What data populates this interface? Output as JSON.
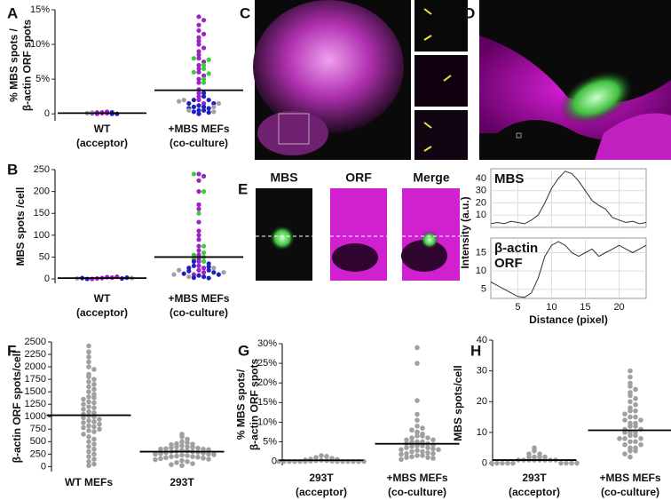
{
  "image_panels": [
    {
      "panel": "C"
    },
    {
      "panel": "D"
    },
    {
      "panel": "E",
      "labels": [
        "MBS",
        "ORF",
        "Merge"
      ]
    }
  ],
  "chart_data": [
    {
      "type": "dot",
      "panel": "A",
      "ylabel": [
        "% MBS spots /",
        "β-actin ORF spots"
      ],
      "categories": [
        "WT",
        "+MBS MEFs"
      ],
      "category_sublabels": [
        "(acceptor)",
        "(co-culture)"
      ],
      "ylim": [
        -1,
        15
      ],
      "yticks": [
        0,
        {
          "value": 5,
          "label": "5%"
        },
        {
          "value": 10,
          "label": "10%"
        },
        {
          "value": 15,
          "label": "15%"
        }
      ],
      "means": [
        0.1,
        3.4
      ],
      "series": [
        {
          "color": "#a020c8",
          "values": [
            [
              0.1,
              0.2,
              0.3,
              0.1,
              0.0,
              0.2
            ],
            [
              14,
              13.5,
              12.8,
              12,
              11.5,
              11,
              10.5,
              10,
              9.5,
              9,
              8.5,
              8,
              7.5,
              7,
              6.5,
              6,
              5.5,
              5,
              4.5,
              3.5,
              3,
              2.5,
              2,
              1.5
            ]
          ]
        },
        {
          "color": "#3ccc3c",
          "values": [
            [],
            [
              8,
              7.8,
              7,
              6.5,
              6,
              5.8,
              5,
              4.5
            ]
          ]
        },
        {
          "color": "#2020c0",
          "values": [
            [
              0.0,
              0.1,
              0.2,
              0.0
            ],
            [
              3,
              2.5,
              2,
              2,
              1.5,
              1.5,
              1.2,
              1,
              1,
              0.8,
              0.8,
              0.5,
              0.5,
              0.3,
              0.2,
              0
            ]
          ]
        },
        {
          "color": "#a0a0a0",
          "values": [
            [
              0.1,
              0.2
            ],
            [
              2,
              1.5,
              1,
              0.5,
              0.3,
              1.8
            ]
          ]
        }
      ]
    },
    {
      "type": "dot",
      "panel": "B",
      "ylabel": [
        "MBS spots /cell"
      ],
      "categories": [
        "WT",
        "+MBS MEFs"
      ],
      "category_sublabels": [
        "(acceptor)",
        "(co-culture)"
      ],
      "ylim": [
        -10,
        250
      ],
      "yticks": [
        0,
        50,
        100,
        150,
        200,
        250
      ],
      "means": [
        2,
        50
      ],
      "series": [
        {
          "color": "#a020c8",
          "values": [
            [
              2,
              4,
              1,
              3,
              0,
              5
            ],
            [
              240,
              235,
              225,
              200,
              170,
              160,
              130,
              110,
              100,
              90,
              75,
              65,
              55,
              45,
              40,
              30,
              25,
              20,
              15,
              10
            ]
          ]
        },
        {
          "color": "#3ccc3c",
          "values": [
            [],
            [
              240,
              200,
              150,
              75,
              60,
              55,
              50,
              45,
              40
            ]
          ]
        },
        {
          "color": "#2020c0",
          "values": [
            [
              0,
              1,
              2,
              3
            ],
            [
              40,
              35,
              30,
              28,
              25,
              20,
              18,
              15,
              12,
              10,
              8,
              5,
              3,
              2
            ]
          ]
        },
        {
          "color": "#a0a0a0",
          "values": [
            [
              1,
              2
            ],
            [
              25,
              20,
              15,
              10,
              5
            ]
          ]
        }
      ]
    },
    {
      "type": "line",
      "title": [
        "MBS"
      ],
      "ylabel": "Intensity (a.u.)",
      "color": "#333333",
      "x": [
        1,
        2,
        3,
        4,
        5,
        6,
        7,
        8,
        9,
        10,
        11,
        12,
        13,
        14,
        15,
        16,
        17,
        18,
        19,
        20,
        21,
        22,
        23,
        24
      ],
      "values": [
        3,
        4,
        3,
        5,
        4,
        3,
        6,
        10,
        20,
        32,
        40,
        46,
        44,
        38,
        30,
        22,
        18,
        15,
        8,
        6,
        4,
        5,
        3,
        4
      ],
      "xlim": [
        1,
        24
      ],
      "ylim": [
        0,
        48
      ],
      "yticks": [
        10,
        20,
        30,
        40
      ]
    },
    {
      "type": "line",
      "title": [
        "β-actin",
        "ORF"
      ],
      "xlabel": "Distance (pixel)",
      "color": "#333333",
      "x": [
        1,
        2,
        3,
        4,
        5,
        6,
        7,
        8,
        9,
        10,
        11,
        12,
        13,
        14,
        15,
        16,
        17,
        18,
        19,
        20,
        21,
        22,
        23,
        24
      ],
      "values": [
        7,
        6,
        5,
        4,
        3,
        2.8,
        4,
        8,
        14,
        17,
        18,
        17,
        15,
        14,
        15,
        16,
        14,
        15,
        16,
        17,
        16,
        15,
        16,
        17
      ],
      "xlim": [
        1,
        24
      ],
      "ylim": [
        2.5,
        19
      ],
      "xticks": [
        5,
        10,
        15,
        20
      ],
      "yticks": [
        5,
        10,
        15
      ]
    },
    {
      "type": "dot",
      "panel": "F",
      "ylabel": [
        "β-actin ORF spots/cell"
      ],
      "categories": [
        "WT MEFs",
        "293T"
      ],
      "ylim": [
        -100,
        2500
      ],
      "yticks": [
        0,
        250,
        500,
        750,
        1000,
        1250,
        1500,
        1750,
        2000,
        2250,
        2500
      ],
      "means": [
        1030,
        300
      ],
      "series": [
        {
          "color": "#a0a0a0",
          "values": [
            [
              2420,
              2300,
              2200,
              2100,
              2000,
              1950,
              1850,
              1800,
              1750,
              1700,
              1650,
              1600,
              1550,
              1500,
              1450,
              1400,
              1380,
              1350,
              1300,
              1280,
              1250,
              1200,
              1180,
              1150,
              1100,
              1080,
              1050,
              1020,
              1000,
              980,
              950,
              920,
              900,
              880,
              850,
              820,
              800,
              780,
              750,
              720,
              700,
              650,
              600,
              550,
              500,
              450,
              400,
              350,
              300,
              250,
              200,
              150,
              100,
              50,
              20
            ],
            [
              650,
              600,
              550,
              500,
              480,
              460,
              450,
              440,
              420,
              400,
              400,
              390,
              380,
              370,
              360,
              350,
              350,
              340,
              330,
              320,
              310,
              300,
              300,
              290,
              280,
              270,
              260,
              250,
              250,
              240,
              230,
              220,
              210,
              200,
              200,
              190,
              180,
              170,
              160,
              150,
              140,
              120,
              100,
              80,
              60,
              40,
              20
            ]
          ]
        }
      ]
    },
    {
      "type": "dot",
      "panel": "G",
      "ylabel": [
        "% MBS spots/",
        "β-actin ORF spots"
      ],
      "categories": [
        "293T",
        "+MBS MEFs"
      ],
      "category_sublabels": [
        "(acceptor)",
        "(co-culture)"
      ],
      "ylim": [
        -1,
        30
      ],
      "yticks": [
        0,
        {
          "value": 5,
          "label": "5%"
        },
        {
          "value": 10,
          "label": "10%"
        },
        {
          "value": 15,
          "label": "15%"
        },
        {
          "value": 20,
          "label": "20%"
        },
        {
          "value": 25,
          "label": "25%"
        },
        {
          "value": 30,
          "label": "30%"
        }
      ],
      "means": [
        0.3,
        4.5
      ],
      "series": [
        {
          "color": "#a0a0a0",
          "values": [
            [
              1.5,
              1.3,
              1.0,
              0.8,
              0.6,
              0.5,
              0.4,
              0.3,
              0.2,
              0.2,
              0.1,
              0.1,
              0,
              0,
              0,
              0,
              0,
              0,
              0,
              0,
              0,
              0,
              0,
              0
            ],
            [
              29,
              25,
              15.5,
              12,
              10.5,
              9,
              8.5,
              8,
              7.5,
              7,
              6.5,
              6.5,
              6,
              6,
              5.5,
              5.5,
              5,
              5,
              5,
              4.5,
              4.5,
              4.2,
              4,
              4,
              3.8,
              3.5,
              3.5,
              3.2,
              3,
              3,
              2.8,
              2.5,
              2.5,
              2.2,
              2,
              2,
              1.8,
              1.5,
              1.5,
              1.2,
              1,
              1,
              0.8,
              0.5
            ]
          ]
        }
      ]
    },
    {
      "type": "dot",
      "panel": "H",
      "ylabel": [
        "MBS spots/cell"
      ],
      "categories": [
        "293T",
        "+MBS MEFs"
      ],
      "category_sublabels": [
        "(acceptor)",
        "(co-culture)"
      ],
      "ylim": [
        -1,
        40
      ],
      "yticks": [
        0,
        10,
        20,
        30,
        40
      ],
      "means": [
        1,
        10.7
      ],
      "series": [
        {
          "color": "#a0a0a0",
          "values": [
            [
              5,
              4,
              3,
              3,
              2,
              2,
              2,
              2,
              1,
              1,
              1,
              1,
              1,
              1,
              1,
              1,
              0,
              0,
              0,
              0,
              0,
              0,
              0,
              0,
              0
            ],
            [
              30,
              28,
              26,
              25,
              24,
              23,
              22,
              21,
              20,
              19,
              18,
              17,
              17,
              16,
              15,
              15,
              14,
              14,
              13,
              13,
              12,
              12,
              11,
              11,
              10,
              10,
              10,
              9,
              9,
              8,
              8,
              8,
              7,
              7,
              6,
              6,
              5,
              5,
              4,
              4,
              3,
              2
            ]
          ]
        }
      ]
    }
  ]
}
